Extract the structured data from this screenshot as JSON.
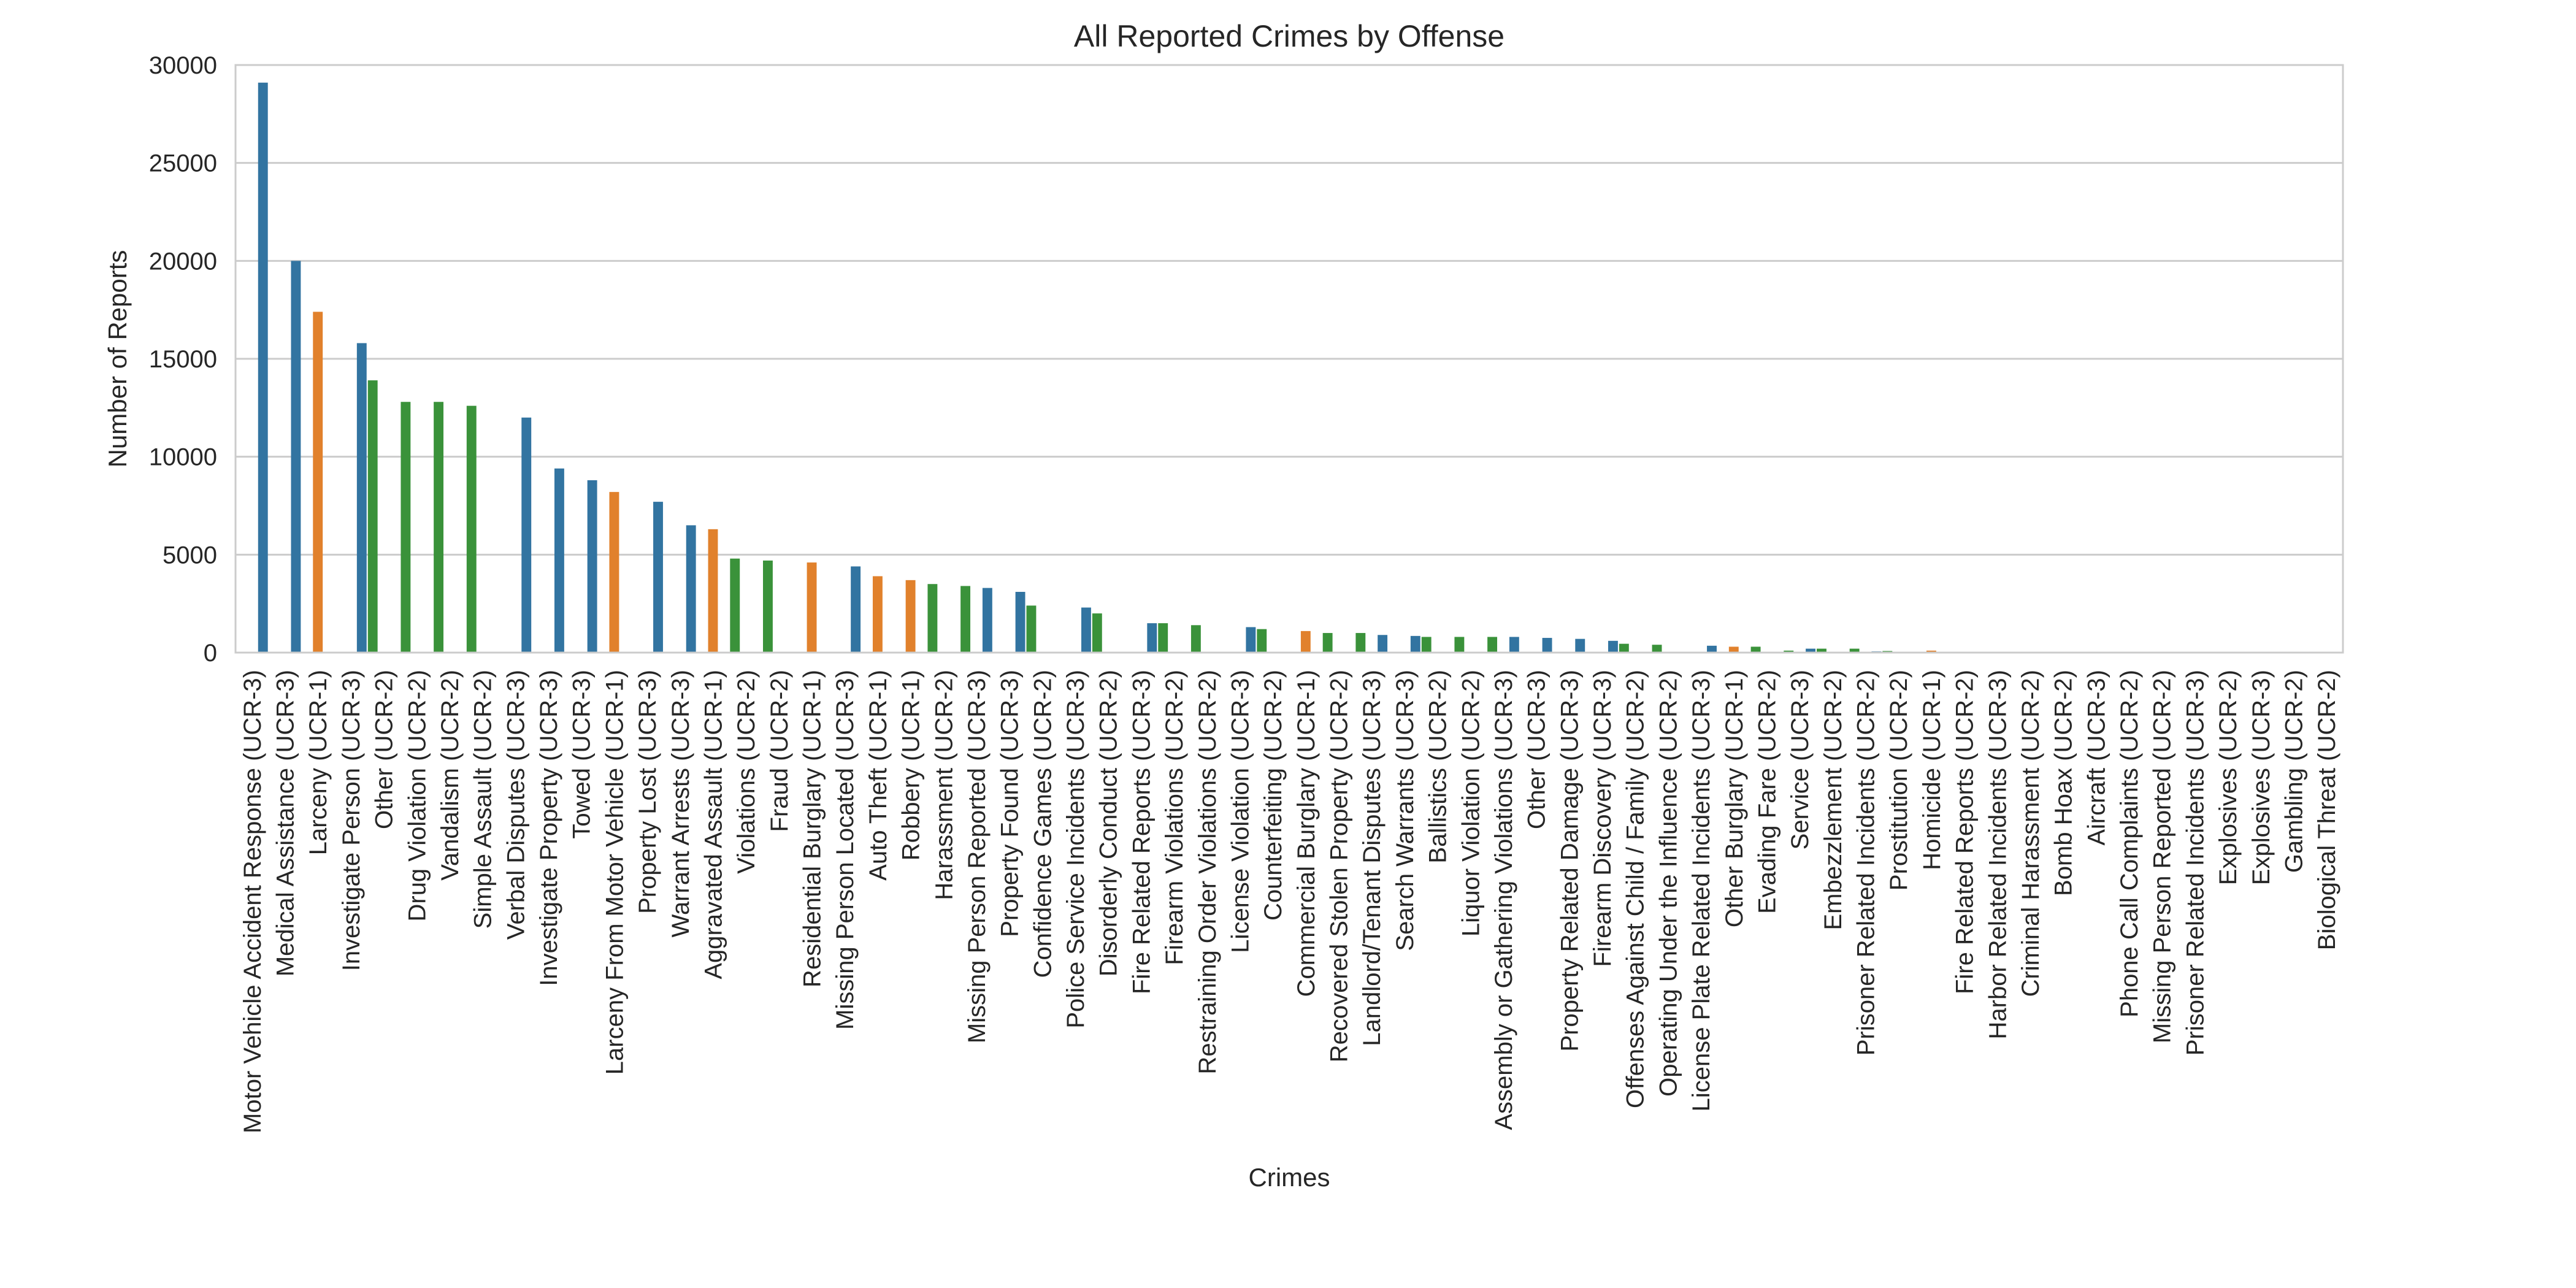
{
  "chart_data": {
    "type": "bar",
    "title": "All Reported Crimes by Offense",
    "xlabel": "Crimes",
    "ylabel": "Number of Reports",
    "ylim": [
      0,
      30000
    ],
    "yticks": [
      0,
      5000,
      10000,
      15000,
      20000,
      25000,
      30000
    ],
    "grid": "horizontal",
    "legend": "none",
    "categories": [
      "Motor Vehicle Accident Response (UCR-3)",
      "Medical Assistance (UCR-3)",
      "Larceny (UCR-1)",
      "Investigate Person (UCR-3)",
      "Other (UCR-2)",
      "Drug Violation (UCR-2)",
      "Vandalism (UCR-2)",
      "Simple Assault (UCR-2)",
      "Verbal Disputes (UCR-3)",
      "Investigate Property (UCR-3)",
      "Towed (UCR-3)",
      "Larceny From Motor Vehicle (UCR-1)",
      "Property Lost (UCR-3)",
      "Warrant Arrests (UCR-3)",
      "Aggravated Assault (UCR-1)",
      "Violations (UCR-2)",
      "Fraud (UCR-2)",
      "Residential Burglary (UCR-1)",
      "Missing Person Located (UCR-3)",
      "Auto Theft (UCR-1)",
      "Robbery (UCR-1)",
      "Harassment (UCR-2)",
      "Missing Person Reported (UCR-3)",
      "Property Found (UCR-3)",
      "Confidence Games (UCR-2)",
      "Police Service Incidents (UCR-3)",
      "Disorderly Conduct (UCR-2)",
      "Fire Related Reports (UCR-3)",
      "Firearm Violations (UCR-2)",
      "Restraining Order Violations (UCR-2)",
      "License Violation (UCR-3)",
      "Counterfeiting (UCR-2)",
      "Commercial Burglary (UCR-1)",
      "Recovered Stolen Property (UCR-2)",
      "Landlord/Tenant Disputes (UCR-3)",
      "Search Warrants (UCR-3)",
      "Ballistics (UCR-2)",
      "Liquor Violation (UCR-2)",
      "Assembly or Gathering Violations (UCR-3)",
      "Other (UCR-3)",
      "Property Related Damage (UCR-3)",
      "Firearm Discovery (UCR-3)",
      "Offenses Against Child / Family (UCR-2)",
      "Operating Under the Influence (UCR-2)",
      "License Plate Related Incidents (UCR-3)",
      "Other Burglary (UCR-1)",
      "Evading Fare (UCR-2)",
      "Service (UCR-3)",
      "Embezzlement (UCR-2)",
      "Prisoner Related Incidents (UCR-2)",
      "Prostitution (UCR-2)",
      "Homicide (UCR-1)",
      "Fire Related Reports (UCR-2)",
      "Harbor Related Incidents (UCR-3)",
      "Criminal Harassment (UCR-2)",
      "Bomb Hoax (UCR-2)",
      "Aircraft (UCR-3)",
      "Phone Call Complaints (UCR-2)",
      "Missing Person Reported (UCR-2)",
      "Prisoner Related Incidents (UCR-3)",
      "Explosives (UCR-2)",
      "Explosives (UCR-3)",
      "Gambling (UCR-2)",
      "Biological Threat (UCR-2)"
    ],
    "series": [
      {
        "color": "#3274a1",
        "offset": 1,
        "values": [
          29100,
          20000,
          null,
          15800,
          null,
          null,
          null,
          null,
          12000,
          9400,
          8800,
          null,
          7700,
          6500,
          null,
          null,
          null,
          null,
          4400,
          null,
          null,
          null,
          3300,
          3100,
          null,
          2300,
          null,
          1500,
          null,
          null,
          1300,
          null,
          null,
          null,
          900,
          850,
          null,
          null,
          800,
          750,
          700,
          600,
          null,
          null,
          350,
          null,
          null,
          200,
          null,
          60,
          null,
          30,
          20,
          10,
          null,
          null,
          10,
          null,
          null,
          5,
          null,
          3,
          null,
          null
        ]
      },
      {
        "color": "#e1812c",
        "offset": 0,
        "values": [
          null,
          null,
          17400,
          null,
          null,
          null,
          null,
          null,
          null,
          null,
          null,
          8200,
          null,
          null,
          6300,
          null,
          null,
          4600,
          null,
          3900,
          3700,
          null,
          null,
          null,
          null,
          null,
          null,
          null,
          null,
          null,
          null,
          null,
          1100,
          null,
          null,
          null,
          null,
          null,
          null,
          null,
          null,
          null,
          null,
          null,
          null,
          300,
          null,
          null,
          null,
          null,
          null,
          100,
          null,
          null,
          null,
          null,
          null,
          null,
          null,
          null,
          null,
          null,
          null,
          null
        ]
      },
      {
        "color": "#3a923a",
        "offset": -1,
        "values": [
          null,
          null,
          null,
          null,
          13900,
          12800,
          12800,
          12600,
          null,
          null,
          null,
          null,
          null,
          null,
          null,
          4800,
          4700,
          null,
          null,
          null,
          null,
          3500,
          3400,
          null,
          2400,
          null,
          2000,
          null,
          1500,
          1400,
          null,
          1200,
          null,
          1000,
          1000,
          null,
          800,
          800,
          800,
          null,
          null,
          null,
          450,
          400,
          null,
          null,
          300,
          100,
          200,
          200,
          80,
          null,
          30,
          15,
          20,
          10,
          null,
          10,
          5,
          null,
          5,
          null,
          3,
          2
        ]
      }
    ]
  }
}
